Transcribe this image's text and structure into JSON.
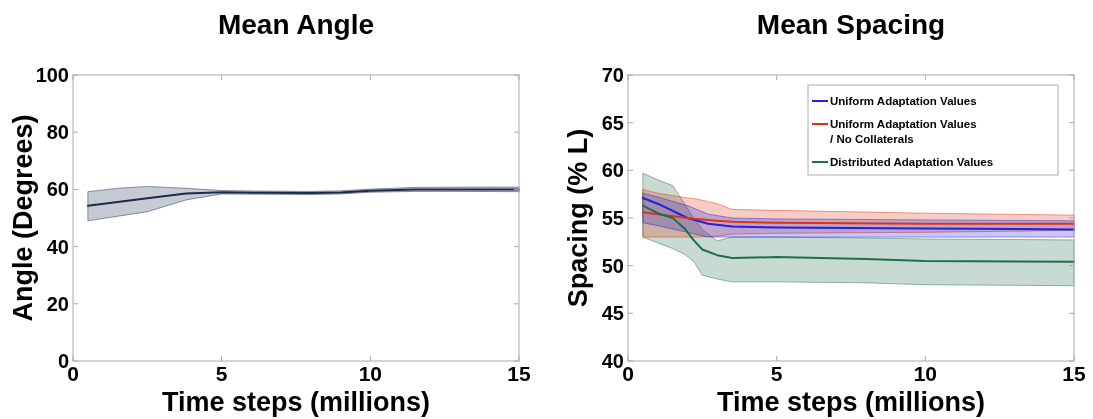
{
  "chart_data": [
    {
      "type": "line",
      "title": "Mean Angle",
      "xlabel": "Time steps (millions)",
      "ylabel": "Angle (Degrees)",
      "xlim": [
        0,
        15
      ],
      "xticks": [
        0,
        5,
        10,
        15
      ],
      "ylim": [
        0,
        100
      ],
      "yticks": [
        0,
        20,
        40,
        60,
        80,
        100
      ],
      "grid": false,
      "legend": false,
      "series": [
        {
          "color": "#1c2a4a",
          "x": [
            0.5,
            1.5,
            2.5,
            3.8,
            5,
            6.5,
            8,
            9,
            10,
            11.5,
            13,
            15
          ],
          "values": [
            54.3,
            55.6,
            56.9,
            58.6,
            59,
            58.8,
            58.7,
            58.9,
            59.5,
            60,
            60,
            60
          ],
          "lower": [
            49,
            50.6,
            52.2,
            56.3,
            58.4,
            58.3,
            58.2,
            58.4,
            59,
            59.3,
            59.3,
            59.2
          ],
          "upper": [
            59.2,
            60.4,
            61,
            60.4,
            59.6,
            59.4,
            59.3,
            59.5,
            60.1,
            60.7,
            60.8,
            60.8
          ]
        }
      ]
    },
    {
      "type": "line",
      "title": "Mean Spacing",
      "xlabel": "Time steps (millions)",
      "ylabel": "Spacing (% L)",
      "xlim": [
        0,
        15
      ],
      "xticks": [
        0,
        5,
        10,
        15
      ],
      "ylim": [
        40,
        70
      ],
      "yticks": [
        40,
        45,
        50,
        55,
        60,
        65,
        70
      ],
      "grid": false,
      "legend": "top right",
      "series": [
        {
          "name": "Uniform Adaptation Values",
          "color": "#2222dd",
          "x": [
            0.5,
            1,
            2,
            2.7,
            3.5,
            5,
            10,
            15
          ],
          "values": [
            57.1,
            56.5,
            55,
            54.4,
            54.1,
            54,
            53.9,
            53.8
          ],
          "lower": [
            54.5,
            54.2,
            53.5,
            53,
            53,
            53,
            53,
            53
          ],
          "upper": [
            57.6,
            57.2,
            56.3,
            55.4,
            55,
            54.9,
            54.8,
            54.7
          ]
        },
        {
          "name": "Uniform Adaptation Values\n/ No Collaterals",
          "color": "#dd3311",
          "x": [
            0.5,
            1,
            2,
            2.3,
            3,
            3.5,
            5,
            10,
            15
          ],
          "values": [
            55.6,
            55.4,
            55,
            54.9,
            54.7,
            54.6,
            54.5,
            54.4,
            54.4
          ],
          "lower": [
            53,
            53,
            53,
            53,
            53.1,
            53.3,
            53.4,
            53.5,
            53.7
          ],
          "upper": [
            58,
            57.6,
            57.1,
            57,
            56.5,
            55.9,
            55.8,
            55.5,
            55.3
          ]
        },
        {
          "name": "Distributed Adaptation Values",
          "color": "#1f6f4a",
          "x": [
            0.5,
            1,
            1.5,
            1.9,
            2.2,
            2.5,
            3,
            3.5,
            5,
            8,
            10,
            15
          ],
          "values": [
            56.3,
            55.5,
            55,
            53.9,
            52.7,
            51.7,
            51.1,
            50.8,
            50.9,
            50.7,
            50.5,
            50.4
          ],
          "lower": [
            53,
            52.4,
            51.8,
            51.2,
            50.5,
            49,
            48.6,
            48.3,
            48.3,
            48.2,
            48,
            47.9
          ],
          "upper": [
            59.7,
            59,
            58.4,
            56.5,
            55,
            53.8,
            52.6,
            53,
            53,
            52.9,
            52.8,
            52.7
          ]
        }
      ]
    }
  ]
}
